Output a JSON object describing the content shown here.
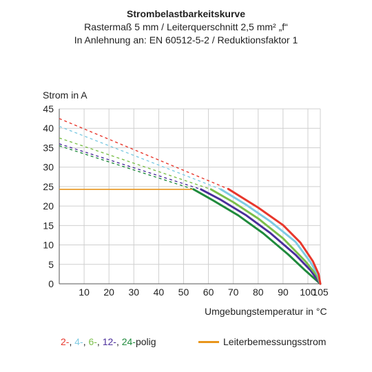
{
  "header": {
    "title": "Strombelastbarkeitskurve",
    "subtitle1": "Rastermaß 5 mm / Leiterquerschnitt 2,5 mm² „f“",
    "subtitle2": "In Anlehnung an: EN 60512-5-2 / Reduktionsfaktor 1"
  },
  "legend": {
    "items": [
      {
        "label": "2-",
        "color": "#e8372c"
      },
      {
        "label": ", ",
        "color": "#222222"
      },
      {
        "label": "4-",
        "color": "#7fcbe3"
      },
      {
        "label": ", ",
        "color": "#222222"
      },
      {
        "label": "6-",
        "color": "#7bbf4a"
      },
      {
        "label": ", ",
        "color": "#222222"
      },
      {
        "label": "12-",
        "color": "#4b2e9b"
      },
      {
        "label": ", ",
        "color": "#222222"
      },
      {
        "label": "24-",
        "color": "#1f8a3c"
      },
      {
        "label": "polig",
        "color": "#222222"
      }
    ],
    "rated_current_label": "Leiterbemessungsstrom",
    "rated_current_color": "#e8951c"
  },
  "chart_data": {
    "type": "line",
    "xlabel": "Umgebungstemperatur in °C",
    "ylabel": "Strom in A",
    "xlim": [
      0,
      105
    ],
    "ylim": [
      0,
      45
    ],
    "xticks": [
      10,
      20,
      30,
      40,
      50,
      60,
      70,
      80,
      90,
      100,
      105
    ],
    "yticks": [
      0,
      5,
      10,
      15,
      20,
      25,
      30,
      35,
      40,
      45
    ],
    "grid": true,
    "series": [
      {
        "name": "2-polig",
        "color": "#e8372c",
        "extrapolated": [
          [
            0,
            42.5
          ],
          [
            68,
            24.4
          ]
        ],
        "solid": [
          [
            68,
            24.4
          ],
          [
            80,
            19.6
          ],
          [
            90,
            15.1
          ],
          [
            97,
            10.6
          ],
          [
            102,
            5.8
          ],
          [
            104.3,
            2.5
          ],
          [
            105,
            0
          ]
        ]
      },
      {
        "name": "4-polig",
        "color": "#7fcbe3",
        "extrapolated": [
          [
            0,
            40.5
          ],
          [
            65,
            24.3
          ]
        ],
        "solid": [
          [
            65,
            24.3
          ],
          [
            75,
            20.4
          ],
          [
            85,
            16.0
          ],
          [
            95,
            10.8
          ],
          [
            101,
            5.6
          ],
          [
            104,
            2.3
          ],
          [
            105,
            0
          ]
        ]
      },
      {
        "name": "6-polig",
        "color": "#7bbf4a",
        "extrapolated": [
          [
            0,
            37.5
          ],
          [
            61,
            24.3
          ]
        ],
        "solid": [
          [
            61,
            24.3
          ],
          [
            70,
            21.0
          ],
          [
            80,
            16.8
          ],
          [
            90,
            11.7
          ],
          [
            99,
            5.8
          ],
          [
            103.5,
            2.2
          ],
          [
            105,
            0
          ]
        ]
      },
      {
        "name": "12-polig",
        "color": "#4b2e9b",
        "extrapolated": [
          [
            0,
            36.0
          ],
          [
            57,
            24.3
          ]
        ],
        "solid": [
          [
            57,
            24.3
          ],
          [
            65,
            21.6
          ],
          [
            75,
            17.7
          ],
          [
            85,
            13.0
          ],
          [
            95,
            7.5
          ],
          [
            101,
            3.5
          ],
          [
            105,
            0
          ]
        ]
      },
      {
        "name": "24-polig",
        "color": "#1f8a3c",
        "extrapolated": [
          [
            0,
            35.5
          ],
          [
            54,
            24.3
          ]
        ],
        "solid": [
          [
            54,
            24.3
          ],
          [
            62,
            21.4
          ],
          [
            72,
            17.6
          ],
          [
            82,
            13.0
          ],
          [
            92,
            7.6
          ],
          [
            99,
            3.4
          ],
          [
            105,
            0
          ]
        ]
      }
    ],
    "rated_current": {
      "name": "Leiterbemessungsstrom",
      "color": "#e8951c",
      "points": [
        [
          0,
          24.3
        ],
        [
          54,
          24.3
        ]
      ]
    }
  }
}
